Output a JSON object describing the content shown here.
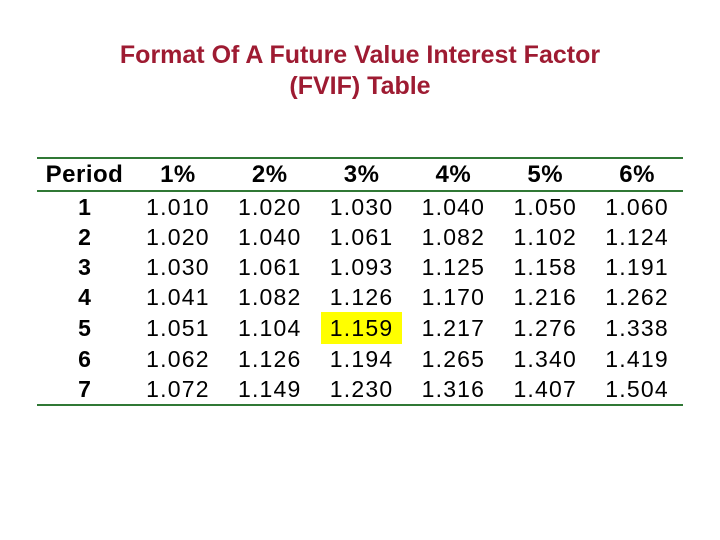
{
  "title": {
    "line1": "Format Of A Future Value Interest Factor",
    "line2": "(FVIF) Table"
  },
  "colors": {
    "title_text": "#9e1b32",
    "table_rule_green": "#307835",
    "highlight_yellow": "#ffff00",
    "body_text": "#000000",
    "background": "#ffffff"
  },
  "table": {
    "columns": [
      "Period",
      "1%",
      "2%",
      "3%",
      "4%",
      "5%",
      "6%"
    ],
    "rows": [
      [
        "1",
        "1.010",
        "1.020",
        "1.030",
        "1.040",
        "1.050",
        "1.060"
      ],
      [
        "2",
        "1.020",
        "1.040",
        "1.061",
        "1.082",
        "1.102",
        "1.124"
      ],
      [
        "3",
        "1.030",
        "1.061",
        "1.093",
        "1.125",
        "1.158",
        "1.191"
      ],
      [
        "4",
        "1.041",
        "1.082",
        "1.126",
        "1.170",
        "1.216",
        "1.262"
      ],
      [
        "5",
        "1.051",
        "1.104",
        "1.159",
        "1.217",
        "1.276",
        "1.338"
      ],
      [
        "6",
        "1.062",
        "1.126",
        "1.194",
        "1.265",
        "1.340",
        "1.419"
      ],
      [
        "7",
        "1.072",
        "1.149",
        "1.230",
        "1.316",
        "1.407",
        "1.504"
      ]
    ],
    "highlight": {
      "period": "5",
      "column": "3%",
      "value": "1.159",
      "css": "background-color:#ffff00"
    }
  }
}
